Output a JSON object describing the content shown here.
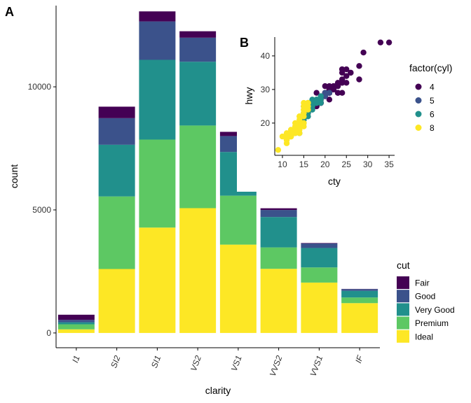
{
  "chart_data": [
    {
      "panel_label": "A",
      "type": "bar",
      "stacked": true,
      "xlabel": "clarity",
      "ylabel": "count",
      "ylim": [
        -600,
        13300
      ],
      "yticks": [
        0,
        5000,
        10000
      ],
      "ytick_labels": [
        "0",
        "5000",
        "10000"
      ],
      "categories": [
        "I1",
        "SI2",
        "SI1",
        "VS2",
        "VS1",
        "VVS2",
        "VVS1",
        "IF"
      ],
      "legend": {
        "title": "cut",
        "position": "right",
        "labels": [
          "Fair",
          "Good",
          "Very Good",
          "Premium",
          "Ideal"
        ]
      },
      "series": [
        {
          "name": "Ideal",
          "color": "#FDE725",
          "values": [
            146,
            2598,
            4282,
            5071,
            3589,
            2606,
            2047,
            1212
          ]
        },
        {
          "name": "Premium",
          "color": "#5DC863",
          "values": [
            205,
            2949,
            3575,
            3357,
            1989,
            870,
            616,
            230
          ]
        },
        {
          "name": "Very Good",
          "color": "#21908C",
          "values": [
            84,
            2100,
            3240,
            2591,
            1775,
            1235,
            789,
            268
          ]
        },
        {
          "name": "Good",
          "color": "#3B528B",
          "values": [
            96,
            1081,
            1560,
            978,
            648,
            286,
            186,
            71
          ]
        },
        {
          "name": "Fair",
          "color": "#440154",
          "values": [
            210,
            466,
            408,
            261,
            170,
            69,
            17,
            9
          ]
        }
      ]
    },
    {
      "panel_label": "B",
      "type": "scatter",
      "xlabel": "cty",
      "ylabel": "hwy",
      "xlim": [
        8.2,
        36.3
      ],
      "ylim": [
        10.4,
        45.6
      ],
      "xticks": [
        10,
        15,
        20,
        25,
        30,
        35
      ],
      "yticks": [
        20,
        30,
        40
      ],
      "legend": {
        "title": "factor(cyl)",
        "position": "right",
        "labels": [
          "4",
          "5",
          "6",
          "8"
        ]
      },
      "series": [
        {
          "name": "4",
          "color": "#440154",
          "points": [
            [
              18,
              29
            ],
            [
              21,
              29
            ],
            [
              20,
              31
            ],
            [
              21,
              30
            ],
            [
              18,
              26
            ],
            [
              18,
              26
            ],
            [
              18,
              25
            ],
            [
              21,
              29
            ],
            [
              19,
              27
            ],
            [
              21,
              31
            ],
            [
              22,
              31
            ],
            [
              21,
              29
            ],
            [
              20,
              28
            ],
            [
              21,
              29
            ],
            [
              23,
              29
            ],
            [
              19,
              26
            ],
            [
              20,
              29
            ],
            [
              28,
              33
            ],
            [
              24,
              32
            ],
            [
              25,
              32
            ],
            [
              23,
              29
            ],
            [
              24,
              32
            ],
            [
              26,
              35
            ],
            [
              28,
              37
            ],
            [
              24,
              35
            ],
            [
              24,
              29
            ],
            [
              35,
              44
            ],
            [
              29,
              41
            ],
            [
              33,
              44
            ],
            [
              21,
              29
            ],
            [
              19,
              26
            ],
            [
              21,
              29
            ],
            [
              22,
              31
            ],
            [
              25,
              34
            ],
            [
              24,
              36
            ],
            [
              24,
              36
            ],
            [
              21,
              29
            ],
            [
              20,
              29
            ],
            [
              22,
              30
            ],
            [
              21,
              30
            ],
            [
              23,
              32
            ],
            [
              23,
              31
            ],
            [
              19,
              26
            ],
            [
              21,
              27
            ],
            [
              20,
              28
            ],
            [
              26,
              35
            ],
            [
              24,
              33
            ],
            [
              25,
              36
            ],
            [
              21,
              29
            ],
            [
              22,
              30
            ],
            [
              17,
              25
            ],
            [
              18,
              25
            ],
            [
              19,
              26
            ],
            [
              16,
              23
            ]
          ]
        },
        {
          "name": "5",
          "color": "#3B528B",
          "points": [
            [
              21,
              29
            ],
            [
              21,
              29
            ],
            [
              20,
              28
            ],
            [
              20,
              29
            ]
          ]
        },
        {
          "name": "6",
          "color": "#21908C",
          "points": [
            [
              16,
              26
            ],
            [
              18,
              26
            ],
            [
              17,
              25
            ],
            [
              15,
              25
            ],
            [
              17,
              24
            ],
            [
              15,
              25
            ],
            [
              15,
              23
            ],
            [
              16,
              25
            ],
            [
              17,
              26
            ],
            [
              18,
              27
            ],
            [
              19,
              26
            ],
            [
              17,
              24
            ],
            [
              15,
              22
            ],
            [
              17,
              25
            ],
            [
              18,
              26
            ],
            [
              14,
              17
            ],
            [
              15,
              20
            ],
            [
              16,
              24
            ],
            [
              15,
              21
            ],
            [
              16,
              22
            ],
            [
              13,
              17
            ],
            [
              14,
              19
            ],
            [
              15,
              22
            ],
            [
              18,
              26
            ],
            [
              19,
              28
            ],
            [
              17,
              26
            ],
            [
              18,
              27
            ],
            [
              16,
              26
            ],
            [
              17,
              27
            ],
            [
              18,
              26
            ],
            [
              19,
              27
            ],
            [
              16,
              24
            ],
            [
              16,
              23
            ],
            [
              15,
              21
            ],
            [
              17,
              25
            ],
            [
              14,
              19
            ]
          ]
        },
        {
          "name": "8",
          "color": "#FDE725",
          "points": [
            [
              15,
              25
            ],
            [
              14,
              20
            ],
            [
              11,
              15
            ],
            [
              12,
              16
            ],
            [
              15,
              23
            ],
            [
              14,
              20
            ],
            [
              13,
              17
            ],
            [
              11,
              16
            ],
            [
              12,
              17
            ],
            [
              9,
              12
            ],
            [
              11,
              15
            ],
            [
              13,
              18
            ],
            [
              12,
              17
            ],
            [
              14,
              19
            ],
            [
              15,
              24
            ],
            [
              12,
              16
            ],
            [
              11,
              14
            ],
            [
              13,
              19
            ],
            [
              14,
              20
            ],
            [
              10,
              16
            ],
            [
              12,
              17
            ],
            [
              15,
              26
            ],
            [
              16,
              26
            ],
            [
              15,
              24
            ],
            [
              14,
              17
            ],
            [
              13,
              19
            ],
            [
              12,
              18
            ],
            [
              11,
              17
            ],
            [
              15,
              22
            ],
            [
              16,
              24
            ],
            [
              15,
              20
            ],
            [
              14,
              22
            ],
            [
              13,
              17
            ],
            [
              11,
              15
            ],
            [
              12,
              17
            ],
            [
              14,
              18
            ],
            [
              15,
              23
            ],
            [
              15,
              19
            ],
            [
              13,
              18
            ],
            [
              12,
              16
            ],
            [
              11,
              15
            ],
            [
              14,
              22
            ],
            [
              16,
              25
            ],
            [
              15,
              24
            ],
            [
              12,
              17
            ],
            [
              13,
              18
            ],
            [
              14,
              19
            ],
            [
              11,
              16
            ],
            [
              15,
              20
            ],
            [
              14,
              21
            ],
            [
              13,
              20
            ],
            [
              16,
              26
            ],
            [
              15,
              25
            ]
          ]
        }
      ]
    }
  ]
}
